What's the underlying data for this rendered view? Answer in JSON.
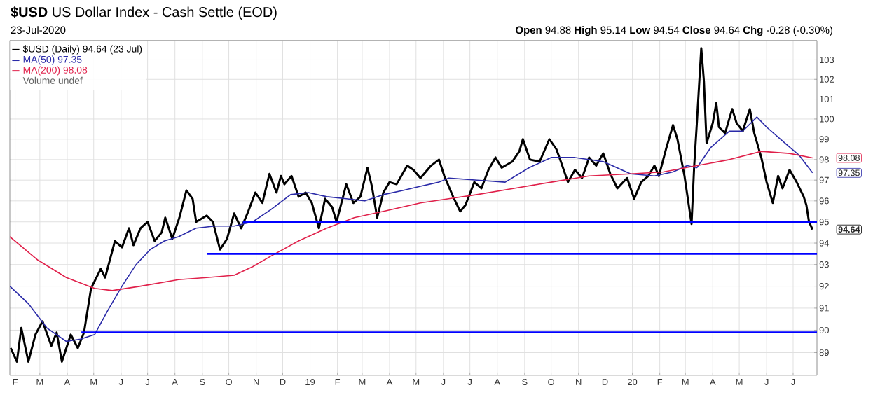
{
  "chart_data": {
    "type": "line",
    "title": "**$USD** US Dollar Index - Cash Settle (EOD)",
    "subtitle": "23-Jul-2020",
    "annotations": [
      "**Open** 94.88 **High** 95.14 **Low** 94.54 **Close** 94.64 **Chg** -0.28 (-0.30%)",
      "Volume undef",
      {
        "text": "98.08",
        "x": "2020-07-23",
        "y": 98.08
      },
      {
        "text": "97.35",
        "x": "2020-07-23",
        "y": 97.35
      },
      {
        "text": "94.64",
        "x": "2020-07-23",
        "y": 94.64
      }
    ],
    "series": [
      {
        "name": "$USD (Daily) 94.64 (23 Jul)",
        "color": "#000000",
        "x": [
          "2018-01-27",
          "2018-02-03",
          "2018-02-08",
          "2018-02-16",
          "2018-02-24",
          "2018-03-04",
          "2018-03-14",
          "2018-03-20",
          "2018-03-26",
          "2018-04-05",
          "2018-04-13",
          "2018-04-20",
          "2018-04-28",
          "2018-05-09",
          "2018-05-14",
          "2018-05-25",
          "2018-06-02",
          "2018-06-10",
          "2018-06-15",
          "2018-06-23",
          "2018-07-01",
          "2018-07-09",
          "2018-07-17",
          "2018-07-21",
          "2018-07-29",
          "2018-08-06",
          "2018-08-14",
          "2018-08-21",
          "2018-08-25",
          "2018-09-06",
          "2018-09-13",
          "2018-09-21",
          "2018-09-29",
          "2018-10-07",
          "2018-10-15",
          "2018-10-23",
          "2018-10-31",
          "2018-11-08",
          "2018-11-16",
          "2018-11-24",
          "2018-11-29",
          "2018-12-03",
          "2018-12-11",
          "2018-12-19",
          "2018-12-27",
          "2019-01-03",
          "2019-01-11",
          "2019-01-18",
          "2019-01-26",
          "2019-01-31",
          "2019-02-11",
          "2019-02-19",
          "2019-02-27",
          "2019-03-07",
          "2019-03-12",
          "2019-03-18",
          "2019-03-25",
          "2019-04-01",
          "2019-04-09",
          "2019-04-21",
          "2019-04-28",
          "2019-05-06",
          "2019-05-18",
          "2019-05-27",
          "2019-06-02",
          "2019-06-12",
          "2019-06-20",
          "2019-06-26",
          "2019-07-06",
          "2019-07-14",
          "2019-07-22",
          "2019-07-30",
          "2019-08-06",
          "2019-08-18",
          "2019-08-26",
          "2019-08-30",
          "2019-09-07",
          "2019-09-18",
          "2019-09-29",
          "2019-10-07",
          "2019-10-12",
          "2019-10-20",
          "2019-10-28",
          "2019-11-05",
          "2019-11-13",
          "2019-11-21",
          "2019-11-29",
          "2019-12-07",
          "2019-12-15",
          "2019-12-26",
          "2020-01-03",
          "2020-01-11",
          "2020-01-19",
          "2020-01-26",
          "2020-01-31",
          "2020-02-08",
          "2020-02-16",
          "2020-02-21",
          "2020-02-29",
          "2020-03-08",
          "2020-03-11",
          "2020-03-14",
          "2020-03-19",
          "2020-03-22",
          "2020-03-25",
          "2020-04-01",
          "2020-04-05",
          "2020-04-08",
          "2020-04-15",
          "2020-04-23",
          "2020-04-28",
          "2020-05-05",
          "2020-05-13",
          "2020-05-18",
          "2020-05-26",
          "2020-06-01",
          "2020-06-08",
          "2020-06-14",
          "2020-06-19",
          "2020-06-27",
          "2020-07-05",
          "2020-07-13",
          "2020-07-16",
          "2020-07-19",
          "2020-07-23"
        ],
        "values": [
          89.2,
          88.6,
          90.1,
          88.6,
          89.8,
          90.4,
          89.3,
          89.9,
          88.6,
          89.8,
          89.2,
          89.9,
          91.9,
          92.8,
          92.4,
          94.1,
          93.8,
          94.7,
          93.9,
          94.7,
          95.0,
          94.1,
          94.5,
          95.2,
          94.2,
          95.2,
          96.5,
          96.1,
          95.0,
          95.3,
          95.0,
          93.7,
          94.2,
          95.4,
          94.7,
          95.5,
          96.4,
          95.9,
          97.3,
          96.4,
          97.2,
          96.8,
          97.2,
          96.2,
          96.4,
          95.9,
          94.7,
          96.1,
          95.7,
          95.0,
          96.8,
          95.9,
          96.2,
          97.6,
          96.7,
          95.2,
          96.4,
          96.9,
          96.8,
          97.7,
          97.5,
          97.1,
          97.7,
          98.0,
          97.2,
          96.2,
          95.5,
          95.8,
          96.9,
          96.6,
          97.5,
          98.1,
          97.6,
          97.9,
          98.4,
          99.0,
          98.0,
          97.9,
          99.0,
          98.5,
          97.9,
          96.9,
          97.5,
          97.1,
          98.1,
          97.7,
          98.3,
          97.3,
          96.6,
          97.1,
          96.1,
          96.9,
          97.2,
          97.7,
          97.2,
          98.5,
          99.7,
          99.0,
          97.2,
          94.9,
          97.7,
          99.8,
          103.6,
          101.9,
          98.8,
          99.8,
          100.8,
          99.6,
          99.3,
          100.5,
          99.8,
          99.4,
          100.5,
          99.3,
          98.1,
          96.9,
          95.9,
          97.2,
          96.6,
          97.5,
          96.9,
          96.2,
          95.8,
          95.0,
          94.64
        ]
      },
      {
        "name": "MA(50) 97.35",
        "color": "#2a2aa8",
        "x": [
          "2018-01-26",
          "2018-02-16",
          "2018-03-09",
          "2018-03-31",
          "2018-04-16",
          "2018-05-02",
          "2018-05-17",
          "2018-06-02",
          "2018-06-18",
          "2018-07-04",
          "2018-07-20",
          "2018-08-05",
          "2018-08-25",
          "2018-09-15",
          "2018-10-07",
          "2018-10-28",
          "2018-11-18",
          "2018-12-10",
          "2018-12-30",
          "2019-01-20",
          "2019-02-11",
          "2019-03-04",
          "2019-03-25",
          "2019-04-16",
          "2019-05-06",
          "2019-05-27",
          "2019-06-07",
          "2019-07-09",
          "2019-08-10",
          "2019-09-06",
          "2019-10-01",
          "2019-10-28",
          "2019-11-29",
          "2019-12-30",
          "2020-01-26",
          "2020-02-16",
          "2020-03-03",
          "2020-03-14",
          "2020-03-30",
          "2020-04-20",
          "2020-05-05",
          "2020-05-21",
          "2020-06-01",
          "2020-06-22",
          "2020-07-08",
          "2020-07-23"
        ],
        "values": [
          92.0,
          91.2,
          90.1,
          89.5,
          89.6,
          89.8,
          90.9,
          92.0,
          93.0,
          93.7,
          94.1,
          94.3,
          94.7,
          94.8,
          94.8,
          95.0,
          95.6,
          96.3,
          96.4,
          96.2,
          96.1,
          96.0,
          96.3,
          96.5,
          96.7,
          96.9,
          97.1,
          97.0,
          96.9,
          97.6,
          98.1,
          98.1,
          97.9,
          97.3,
          97.2,
          97.4,
          97.7,
          97.6,
          98.6,
          99.4,
          99.4,
          100.1,
          99.6,
          98.8,
          98.2,
          97.35
        ]
      },
      {
        "name": "MA(200) 98.08",
        "color": "#e0204a",
        "x": [
          "2018-01-26",
          "2018-02-27",
          "2018-03-31",
          "2018-05-02",
          "2018-05-22",
          "2018-06-23",
          "2018-08-05",
          "2018-09-06",
          "2018-10-07",
          "2018-10-28",
          "2018-11-18",
          "2018-12-19",
          "2019-01-20",
          "2019-02-20",
          "2019-03-25",
          "2019-05-06",
          "2019-06-07",
          "2019-07-09",
          "2019-08-20",
          "2019-10-01",
          "2019-11-13",
          "2019-12-30",
          "2020-02-05",
          "2020-03-14",
          "2020-04-20",
          "2020-05-26",
          "2020-06-27",
          "2020-07-23"
        ],
        "values": [
          94.3,
          93.2,
          92.4,
          91.9,
          91.8,
          92.0,
          92.3,
          92.4,
          92.5,
          92.9,
          93.4,
          94.1,
          94.7,
          95.2,
          95.5,
          95.9,
          96.1,
          96.3,
          96.6,
          96.9,
          97.2,
          97.3,
          97.4,
          97.7,
          98.0,
          98.4,
          98.3,
          98.08
        ]
      },
      {
        "type": "line",
        "color": "#0000ff",
        "x": [
          "2018-10-17",
          "2020-07-28"
        ],
        "values": [
          95.0,
          95.0
        ]
      },
      {
        "type": "line",
        "color": "#0000ff",
        "x": [
          "2018-09-06",
          "2020-07-28"
        ],
        "values": [
          93.5,
          93.5
        ]
      },
      {
        "type": "line",
        "color": "#0000ff",
        "x": [
          "2018-04-17",
          "2020-07-28"
        ],
        "values": [
          89.9,
          89.9
        ]
      }
    ],
    "xlim": [
      "2018-01-26",
      "2020-07-28"
    ],
    "xticks": [
      {
        "value": "2018-02-01",
        "label": "F"
      },
      {
        "value": "2018-03-01",
        "label": "M"
      },
      {
        "value": "2018-04-01",
        "label": "A"
      },
      {
        "value": "2018-05-01",
        "label": "M"
      },
      {
        "value": "2018-06-01",
        "label": "J"
      },
      {
        "value": "2018-07-01",
        "label": "J"
      },
      {
        "value": "2018-08-01",
        "label": "A"
      },
      {
        "value": "2018-09-01",
        "label": "S"
      },
      {
        "value": "2018-10-01",
        "label": "O"
      },
      {
        "value": "2018-11-01",
        "label": "N"
      },
      {
        "value": "2018-12-01",
        "label": "D"
      },
      {
        "value": "2019-01-01",
        "label": "19"
      },
      {
        "value": "2019-02-01",
        "label": "F"
      },
      {
        "value": "2019-03-01",
        "label": "M"
      },
      {
        "value": "2019-04-01",
        "label": "A"
      },
      {
        "value": "2019-05-01",
        "label": "M"
      },
      {
        "value": "2019-06-01",
        "label": "J"
      },
      {
        "value": "2019-07-01",
        "label": "J"
      },
      {
        "value": "2019-08-01",
        "label": "A"
      },
      {
        "value": "2019-09-01",
        "label": "S"
      },
      {
        "value": "2019-10-01",
        "label": "O"
      },
      {
        "value": "2019-11-01",
        "label": "N"
      },
      {
        "value": "2019-12-01",
        "label": "D"
      },
      {
        "value": "2020-01-01",
        "label": "20"
      },
      {
        "value": "2020-02-01",
        "label": "F"
      },
      {
        "value": "2020-03-01",
        "label": "M"
      },
      {
        "value": "2020-04-01",
        "label": "A"
      },
      {
        "value": "2020-05-01",
        "label": "M"
      },
      {
        "value": "2020-06-01",
        "label": "J"
      },
      {
        "value": "2020-07-01",
        "label": "J"
      }
    ],
    "ylim": [
      88,
      104
    ],
    "yticks": [
      89,
      90,
      91,
      92,
      93,
      94,
      95,
      96,
      97,
      98,
      99,
      100,
      101,
      102,
      103
    ],
    "log": true,
    "grid": true,
    "legend": "top left"
  }
}
